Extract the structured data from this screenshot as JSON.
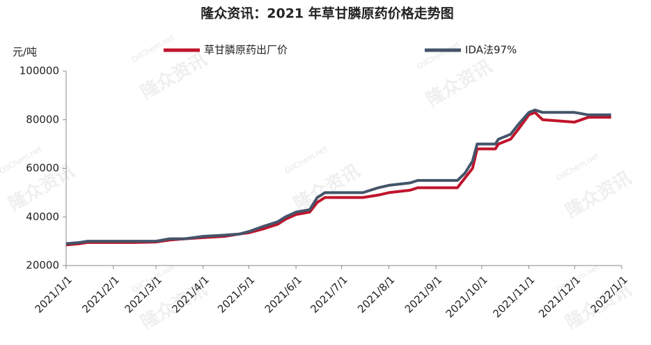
{
  "chart_data": {
    "type": "line",
    "title": "隆众资讯：2021 年草甘膦原药价格走势图",
    "y_axis_label": "元/吨",
    "watermark": "隆众资讯",
    "watermark_site": "OilChem.net",
    "x": [
      "2021/1/1",
      "2021/1/10",
      "2021/1/15",
      "2021/2/1",
      "2021/2/15",
      "2021/3/1",
      "2021/3/10",
      "2021/3/20",
      "2021/4/1",
      "2021/4/15",
      "2021/4/25",
      "2021/5/1",
      "2021/5/10",
      "2021/5/20",
      "2021/5/25",
      "2021/6/1",
      "2021/6/10",
      "2021/6/15",
      "2021/6/20",
      "2021/7/1",
      "2021/7/15",
      "2021/7/25",
      "2021/8/1",
      "2021/8/15",
      "2021/8/20",
      "2021/9/1",
      "2021/9/15",
      "2021/9/20",
      "2021/9/25",
      "2021/9/28",
      "2021/10/10",
      "2021/10/12",
      "2021/10/20",
      "2021/10/25",
      "2021/11/1",
      "2021/11/5",
      "2021/11/10",
      "2021/12/1",
      "2021/12/10",
      "2021/12/25"
    ],
    "series": [
      {
        "name": "草甘膦原药出厂价",
        "color": "#c0142c",
        "values": [
          28500,
          29000,
          29500,
          29500,
          29500,
          29700,
          30500,
          31000,
          31500,
          32000,
          33000,
          33500,
          35000,
          37000,
          39000,
          41000,
          42000,
          46000,
          48000,
          48000,
          48000,
          49000,
          50000,
          51000,
          52000,
          52000,
          52000,
          56000,
          60000,
          68000,
          68000,
          70000,
          72000,
          76000,
          82000,
          83000,
          80000,
          79000,
          81000,
          81000
        ]
      },
      {
        "name": "IDA法97%",
        "color": "#44546a",
        "values": [
          29000,
          29500,
          30000,
          30000,
          30000,
          30000,
          31000,
          31000,
          32000,
          32500,
          33000,
          34000,
          36000,
          38000,
          40000,
          42000,
          43000,
          48000,
          50000,
          50000,
          50000,
          52000,
          53000,
          54000,
          55000,
          55000,
          55000,
          58000,
          63000,
          70000,
          70000,
          72000,
          74000,
          78000,
          83000,
          84000,
          83000,
          83000,
          82000,
          82000
        ]
      }
    ],
    "xlim": [
      "2021/1/1",
      "2022/1/1"
    ],
    "xticks": [
      "2021/1/1",
      "2021/2/1",
      "2021/3/1",
      "2021/4/1",
      "2021/5/1",
      "2021/6/1",
      "2021/7/1",
      "2021/8/1",
      "2021/9/1",
      "2021/10/1",
      "2021/11/1",
      "2021/12/1",
      "2022/1/1"
    ],
    "ylim": [
      20000,
      100000
    ],
    "yticks": [
      20000,
      40000,
      60000,
      80000,
      100000
    ],
    "grid": false,
    "legend": "top"
  }
}
